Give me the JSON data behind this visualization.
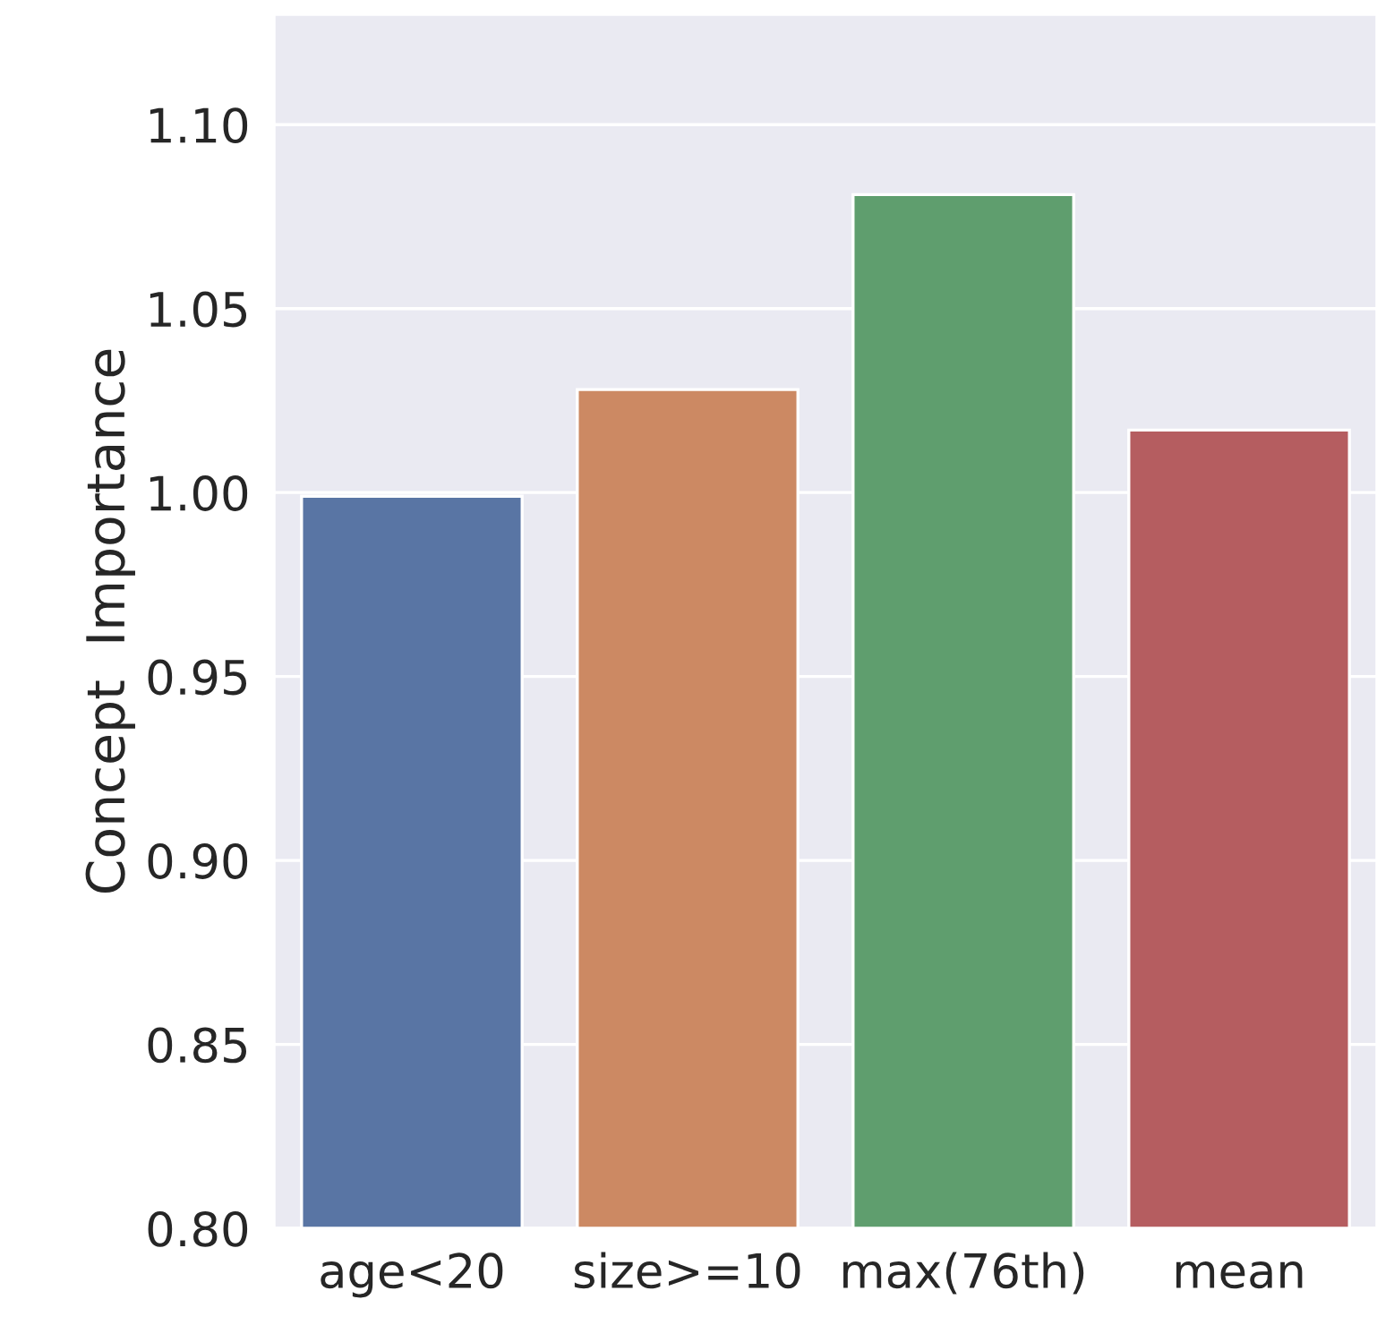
{
  "chart_data": {
    "type": "bar",
    "ylabel": "Concept  Importance",
    "categories": [
      "age<20",
      "size>=10",
      "max(76th)",
      "mean"
    ],
    "values": [
      0.999,
      1.028,
      1.081,
      1.017
    ],
    "colors": [
      "#5975a4",
      "#cc8963",
      "#5f9e6e",
      "#b55d60"
    ],
    "ylim": [
      0.8,
      1.13
    ],
    "yticks": [
      {
        "value": 0.8,
        "label": "0.80"
      },
      {
        "value": 0.85,
        "label": "0.85"
      },
      {
        "value": 0.9,
        "label": "0.90"
      },
      {
        "value": 0.95,
        "label": "0.95"
      },
      {
        "value": 1.0,
        "label": "1.00"
      },
      {
        "value": 1.05,
        "label": "1.05"
      },
      {
        "value": 1.1,
        "label": "1.10"
      }
    ],
    "grid": "y"
  }
}
